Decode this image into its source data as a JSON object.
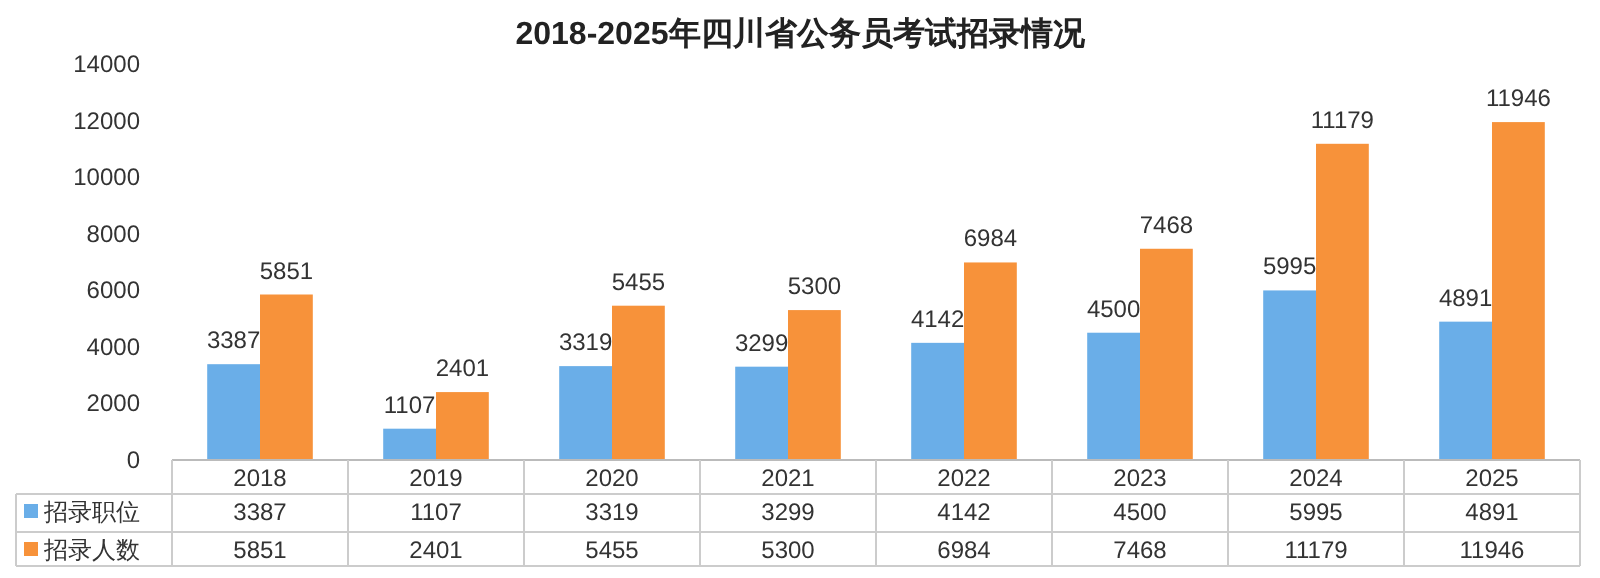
{
  "chart_data": {
    "type": "bar",
    "title": "2018-2025年四川省公务员考试招录情况",
    "categories": [
      "2018",
      "2019",
      "2020",
      "2021",
      "2022",
      "2023",
      "2024",
      "2025"
    ],
    "series": [
      {
        "name": "招录职位",
        "color": "#6aaee8",
        "values": [
          3387,
          1107,
          3319,
          3299,
          4142,
          4500,
          5995,
          4891
        ],
        "value_labels": [
          "3387",
          "1107",
          "3319",
          "3299",
          "4142",
          "4500",
          "5995",
          "4891"
        ]
      },
      {
        "name": "招录人数",
        "color": "#f7923a",
        "values": [
          5851,
          2401,
          5455,
          5300,
          6984,
          7468,
          11179,
          11946
        ],
        "value_labels": [
          "5851",
          "2401",
          "5455",
          "5300",
          "6984",
          "7468",
          "11179",
          "11946"
        ]
      }
    ],
    "ylim": [
      0,
      14000
    ],
    "yticks": [
      0,
      2000,
      4000,
      6000,
      8000,
      10000,
      12000,
      14000
    ],
    "annotations": [
      "3387",
      "1107",
      "3319",
      "3299",
      "4142",
      "4500",
      "5995",
      "4891",
      "5851",
      "2401",
      "5455",
      "5300",
      "6984",
      "7468",
      "11179",
      "11946"
    ],
    "legend": "bottom",
    "grid": false
  }
}
